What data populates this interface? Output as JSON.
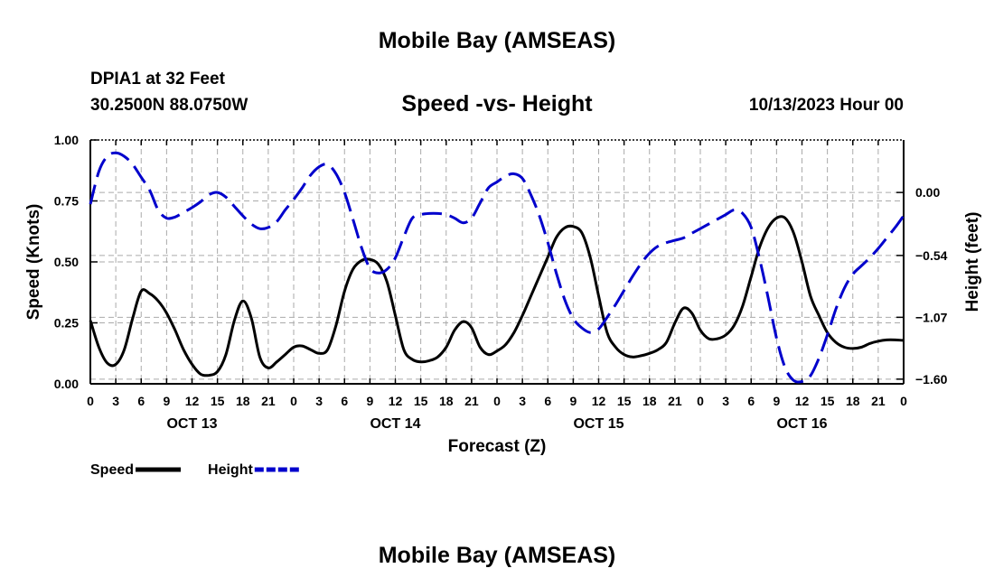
{
  "header": {
    "title": "Mobile Bay (AMSEAS)",
    "station": "DPIA1 at 32 Feet",
    "coords": "30.2500N  88.0750W",
    "subtitle": "Speed -vs- Height",
    "datetime": "10/13/2023 Hour 00"
  },
  "footer": {
    "title": "Mobile Bay (AMSEAS)"
  },
  "chart_data": {
    "type": "line",
    "xlabel": "Forecast (Z)",
    "x_hours": [
      0,
      3,
      6,
      9,
      12,
      15,
      18,
      21,
      24,
      27,
      30,
      33,
      36,
      39,
      42,
      45,
      48,
      51,
      54,
      57,
      60,
      63,
      66,
      69,
      72,
      75,
      78,
      81,
      84,
      87,
      90,
      93,
      96
    ],
    "xlim": [
      0,
      96
    ],
    "xtick_labels": [
      "0",
      "3",
      "6",
      "9",
      "12",
      "15",
      "18",
      "21",
      "0",
      "3",
      "6",
      "9",
      "12",
      "15",
      "18",
      "21",
      "0",
      "3",
      "6",
      "9",
      "12",
      "15",
      "18",
      "21",
      "0",
      "3",
      "6",
      "9",
      "12",
      "15",
      "18",
      "21",
      "0"
    ],
    "day_labels": [
      {
        "label": "OCT 13",
        "hour": 12
      },
      {
        "label": "OCT 14",
        "hour": 36
      },
      {
        "label": "OCT 15",
        "hour": 60
      },
      {
        "label": "OCT 16",
        "hour": 84
      }
    ],
    "left_axis": {
      "label": "Speed (Knots)",
      "ylim": [
        0,
        1
      ],
      "ticks": [
        0,
        0.25,
        0.5,
        0.75,
        1.0
      ],
      "tick_labels": [
        "0.00",
        "0.25",
        "0.50",
        "0.75",
        "1.00"
      ]
    },
    "right_axis": {
      "label": "Height (feet)",
      "ylim": [
        -1.64,
        0.45
      ],
      "ticks": [
        0.0,
        -0.54,
        -1.07,
        -1.6
      ],
      "tick_labels": [
        "0.00",
        "−0.54",
        "−1.07",
        "−1.60"
      ]
    },
    "series": [
      {
        "name": "Speed",
        "axis": "left",
        "color": "#000000",
        "style": "solid",
        "points": [
          [
            0,
            0.26
          ],
          [
            1,
            0.15
          ],
          [
            2,
            0.085
          ],
          [
            3,
            0.08
          ],
          [
            4,
            0.14
          ],
          [
            5,
            0.27
          ],
          [
            6,
            0.38
          ],
          [
            7,
            0.37
          ],
          [
            8,
            0.34
          ],
          [
            9,
            0.29
          ],
          [
            10,
            0.22
          ],
          [
            11,
            0.14
          ],
          [
            12,
            0.08
          ],
          [
            13,
            0.04
          ],
          [
            14,
            0.035
          ],
          [
            15,
            0.05
          ],
          [
            16,
            0.12
          ],
          [
            17,
            0.26
          ],
          [
            18,
            0.34
          ],
          [
            19,
            0.27
          ],
          [
            20,
            0.11
          ],
          [
            21,
            0.065
          ],
          [
            22,
            0.09
          ],
          [
            23,
            0.12
          ],
          [
            24,
            0.15
          ],
          [
            25,
            0.155
          ],
          [
            26,
            0.14
          ],
          [
            27,
            0.125
          ],
          [
            28,
            0.14
          ],
          [
            29,
            0.24
          ],
          [
            30,
            0.38
          ],
          [
            31,
            0.47
          ],
          [
            32,
            0.505
          ],
          [
            33,
            0.51
          ],
          [
            34,
            0.49
          ],
          [
            35,
            0.42
          ],
          [
            36,
            0.28
          ],
          [
            37,
            0.14
          ],
          [
            38,
            0.1
          ],
          [
            39,
            0.09
          ],
          [
            40,
            0.095
          ],
          [
            41,
            0.11
          ],
          [
            42,
            0.15
          ],
          [
            43,
            0.22
          ],
          [
            44,
            0.255
          ],
          [
            45,
            0.23
          ],
          [
            46,
            0.15
          ],
          [
            47,
            0.12
          ],
          [
            48,
            0.135
          ],
          [
            49,
            0.16
          ],
          [
            50,
            0.21
          ],
          [
            51,
            0.28
          ],
          [
            52,
            0.36
          ],
          [
            53,
            0.44
          ],
          [
            54,
            0.52
          ],
          [
            55,
            0.6
          ],
          [
            56,
            0.64
          ],
          [
            57,
            0.645
          ],
          [
            58,
            0.62
          ],
          [
            59,
            0.52
          ],
          [
            60,
            0.36
          ],
          [
            61,
            0.21
          ],
          [
            62,
            0.15
          ],
          [
            63,
            0.12
          ],
          [
            64,
            0.11
          ],
          [
            65,
            0.115
          ],
          [
            66,
            0.125
          ],
          [
            67,
            0.14
          ],
          [
            68,
            0.17
          ],
          [
            69,
            0.25
          ],
          [
            70,
            0.31
          ],
          [
            71,
            0.29
          ],
          [
            72,
            0.22
          ],
          [
            73,
            0.185
          ],
          [
            74,
            0.185
          ],
          [
            75,
            0.2
          ],
          [
            76,
            0.24
          ],
          [
            77,
            0.32
          ],
          [
            78,
            0.44
          ],
          [
            79,
            0.56
          ],
          [
            80,
            0.64
          ],
          [
            81,
            0.68
          ],
          [
            82,
            0.68
          ],
          [
            83,
            0.62
          ],
          [
            84,
            0.5
          ],
          [
            85,
            0.36
          ],
          [
            86,
            0.28
          ],
          [
            87,
            0.21
          ],
          [
            88,
            0.17
          ],
          [
            89,
            0.15
          ],
          [
            90,
            0.145
          ],
          [
            91,
            0.15
          ],
          [
            92,
            0.165
          ],
          [
            93,
            0.175
          ],
          [
            94,
            0.18
          ],
          [
            95,
            0.18
          ],
          [
            96,
            0.178
          ]
        ]
      },
      {
        "name": "Height",
        "axis": "right",
        "color": "#0000cc",
        "style": "dashed",
        "points": [
          [
            0,
            -0.1
          ],
          [
            1,
            0.18
          ],
          [
            2,
            0.31
          ],
          [
            3,
            0.34
          ],
          [
            4,
            0.31
          ],
          [
            5,
            0.24
          ],
          [
            6,
            0.13
          ],
          [
            7,
            0.02
          ],
          [
            8,
            -0.15
          ],
          [
            9,
            -0.22
          ],
          [
            10,
            -0.21
          ],
          [
            11,
            -0.17
          ],
          [
            12,
            -0.13
          ],
          [
            13,
            -0.08
          ],
          [
            14,
            -0.02
          ],
          [
            15,
            0.0
          ],
          [
            16,
            -0.04
          ],
          [
            17,
            -0.12
          ],
          [
            18,
            -0.2
          ],
          [
            19,
            -0.27
          ],
          [
            20,
            -0.31
          ],
          [
            21,
            -0.3
          ],
          [
            22,
            -0.25
          ],
          [
            23,
            -0.15
          ],
          [
            24,
            -0.06
          ],
          [
            25,
            0.04
          ],
          [
            26,
            0.15
          ],
          [
            27,
            0.22
          ],
          [
            28,
            0.24
          ],
          [
            29,
            0.16
          ],
          [
            30,
            0.0
          ],
          [
            31,
            -0.23
          ],
          [
            32,
            -0.47
          ],
          [
            33,
            -0.65
          ],
          [
            34,
            -0.69
          ],
          [
            35,
            -0.66
          ],
          [
            36,
            -0.56
          ],
          [
            37,
            -0.38
          ],
          [
            38,
            -0.22
          ],
          [
            39,
            -0.19
          ],
          [
            40,
            -0.18
          ],
          [
            41,
            -0.18
          ],
          [
            42,
            -0.19
          ],
          [
            43,
            -0.22
          ],
          [
            44,
            -0.26
          ],
          [
            45,
            -0.22
          ],
          [
            46,
            -0.09
          ],
          [
            47,
            0.04
          ],
          [
            48,
            0.09
          ],
          [
            49,
            0.14
          ],
          [
            50,
            0.16
          ],
          [
            51,
            0.12
          ],
          [
            52,
            -0.02
          ],
          [
            53,
            -0.2
          ],
          [
            54,
            -0.43
          ],
          [
            55,
            -0.69
          ],
          [
            56,
            -0.92
          ],
          [
            57,
            -1.08
          ],
          [
            58,
            -1.16
          ],
          [
            59,
            -1.2
          ],
          [
            60,
            -1.17
          ],
          [
            61,
            -1.07
          ],
          [
            62,
            -0.96
          ],
          [
            63,
            -0.84
          ],
          [
            64,
            -0.72
          ],
          [
            65,
            -0.61
          ],
          [
            66,
            -0.52
          ],
          [
            67,
            -0.46
          ],
          [
            68,
            -0.43
          ],
          [
            69,
            -0.41
          ],
          [
            70,
            -0.39
          ],
          [
            71,
            -0.35
          ],
          [
            72,
            -0.31
          ],
          [
            73,
            -0.27
          ],
          [
            74,
            -0.23
          ],
          [
            75,
            -0.19
          ],
          [
            76,
            -0.15
          ],
          [
            77,
            -0.18
          ],
          [
            78,
            -0.3
          ],
          [
            79,
            -0.57
          ],
          [
            80,
            -0.9
          ],
          [
            81,
            -1.25
          ],
          [
            82,
            -1.5
          ],
          [
            83,
            -1.61
          ],
          [
            84,
            -1.62
          ],
          [
            85,
            -1.57
          ],
          [
            86,
            -1.42
          ],
          [
            87,
            -1.22
          ],
          [
            88,
            -1.0
          ],
          [
            89,
            -0.82
          ],
          [
            90,
            -0.7
          ],
          [
            91,
            -0.63
          ],
          [
            92,
            -0.56
          ],
          [
            93,
            -0.48
          ],
          [
            94,
            -0.39
          ],
          [
            95,
            -0.3
          ],
          [
            96,
            -0.2
          ]
        ]
      }
    ],
    "legend": {
      "placement": "bottom-left",
      "entries": [
        {
          "label": "Speed",
          "color": "#000000",
          "style": "solid"
        },
        {
          "label": "Height",
          "color": "#0000cc",
          "style": "dashed"
        }
      ]
    }
  }
}
